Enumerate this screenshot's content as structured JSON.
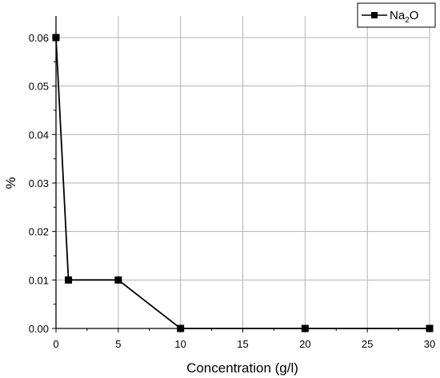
{
  "chart_data": {
    "type": "line",
    "title": "",
    "xlabel": "Concentration (g/l)",
    "ylabel": "%",
    "xlim": [
      0,
      30
    ],
    "ylim": [
      0,
      0.06
    ],
    "x_ticks": [
      0,
      5,
      10,
      15,
      20,
      25,
      30
    ],
    "x_tick_labels": [
      "0",
      "5",
      "10",
      "15",
      "20",
      "25",
      "30"
    ],
    "y_ticks": [
      0,
      0.01,
      0.02,
      0.03,
      0.04,
      0.05,
      0.06
    ],
    "y_tick_labels": [
      "0.00",
      "0.01",
      "0.02",
      "0.03",
      "0.04",
      "0.05",
      "0.06"
    ],
    "grid": true,
    "legend_position": "top-right",
    "series": [
      {
        "name": "Na₂O",
        "name_base": "Na",
        "name_sub": "2",
        "name_suffix": "O",
        "color": "#000000",
        "marker": "square",
        "points": [
          {
            "x": 0,
            "y": 0.06
          },
          {
            "x": 1,
            "y": 0.01
          },
          {
            "x": 5,
            "y": 0.01
          },
          {
            "x": 10,
            "y": 0.0
          },
          {
            "x": 20,
            "y": 0.0
          },
          {
            "x": 30,
            "y": 0.0
          }
        ]
      }
    ]
  }
}
